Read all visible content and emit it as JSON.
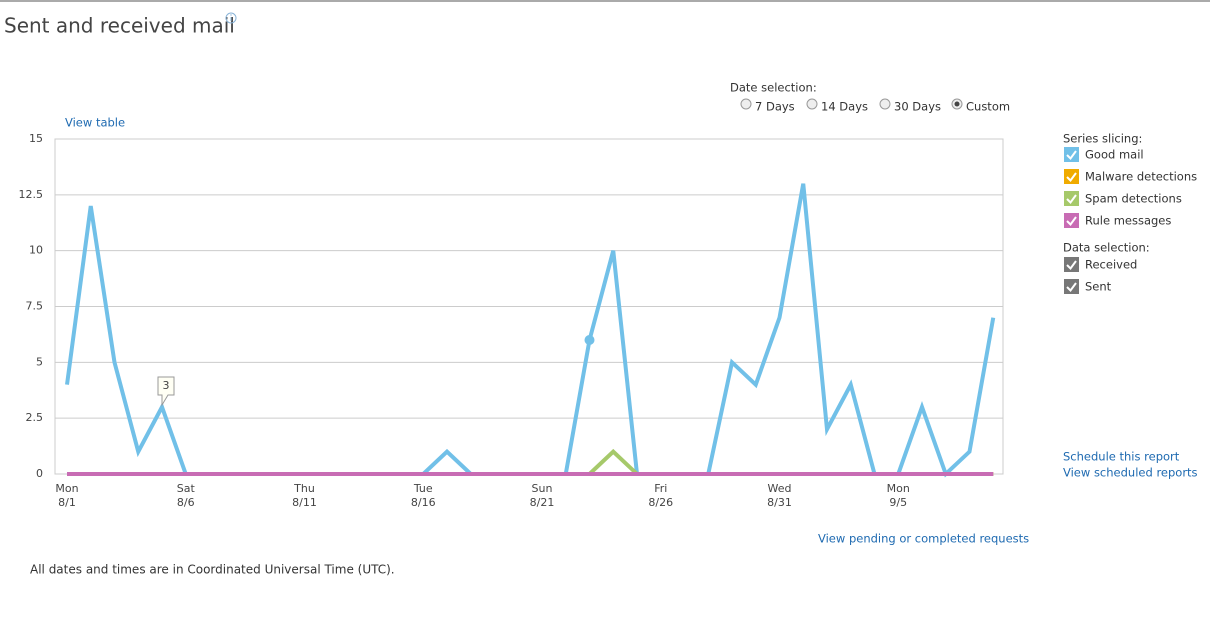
{
  "header": {
    "title": "Sent and received mail"
  },
  "view_table": "View table",
  "date_selection": {
    "label": "Date selection:",
    "options": [
      "7 Days",
      "14 Days",
      "30 Days",
      "Custom"
    ],
    "selected": 3
  },
  "series_slicing": {
    "label": "Series slicing:"
  },
  "data_selection": {
    "label": "Data selection:",
    "items": [
      "Received",
      "Sent"
    ]
  },
  "links": {
    "schedule": "Schedule this report",
    "scheduled": "View scheduled reports",
    "pending": "View pending or completed requests"
  },
  "footer": "All dates and times are in Coordinated Universal Time (UTC).",
  "chart_data": {
    "type": "line",
    "categories": [
      [
        "Mon",
        "8/1"
      ],
      null,
      null,
      null,
      null,
      [
        "Sat",
        "8/6"
      ],
      null,
      null,
      null,
      null,
      [
        "Thu",
        "8/11"
      ],
      null,
      null,
      null,
      null,
      [
        "Tue",
        "8/16"
      ],
      null,
      null,
      null,
      null,
      [
        "Sun",
        "8/21"
      ],
      null,
      null,
      null,
      null,
      [
        "Fri",
        "8/26"
      ],
      null,
      null,
      null,
      null,
      [
        "Wed",
        "8/31"
      ],
      null,
      null,
      null,
      null,
      [
        "Mon",
        "9/5"
      ],
      null,
      null,
      null,
      null
    ],
    "series": [
      {
        "name": "Good mail",
        "color": "#71c0e8",
        "values": [
          4,
          12,
          5,
          1,
          3,
          0,
          0,
          0,
          0,
          0,
          0,
          0,
          0,
          0,
          0,
          0,
          1,
          0,
          0,
          0,
          0,
          0,
          6,
          10,
          0,
          0,
          0,
          0,
          5,
          4,
          7,
          13,
          2,
          4,
          0,
          0,
          3,
          0,
          1,
          7
        ]
      },
      {
        "name": "Malware detections",
        "color": "#f0ab00",
        "values": [
          0,
          0,
          0,
          0,
          0,
          0,
          0,
          0,
          0,
          0,
          0,
          0,
          0,
          0,
          0,
          0,
          0,
          0,
          0,
          0,
          0,
          0,
          0,
          0,
          0,
          0,
          0,
          0,
          0,
          0,
          0,
          0,
          0,
          0,
          0,
          0,
          0,
          0,
          0,
          0
        ]
      },
      {
        "name": "Spam detections",
        "color": "#a6c96a",
        "values": [
          0,
          0,
          0,
          0,
          0,
          0,
          0,
          0,
          0,
          0,
          0,
          0,
          0,
          0,
          0,
          0,
          0,
          0,
          0,
          0,
          0,
          0,
          0,
          1,
          0,
          0,
          0,
          0,
          0,
          0,
          0,
          0,
          0,
          0,
          0,
          0,
          0,
          0,
          0,
          0
        ]
      },
      {
        "name": "Rule messages",
        "color": "#c86cb4",
        "values": [
          0,
          0,
          0,
          0,
          0,
          0,
          0,
          0,
          0,
          0,
          0,
          0,
          0,
          0,
          0,
          0,
          0,
          0,
          0,
          0,
          0,
          0,
          0,
          0,
          0,
          0,
          0,
          0,
          0,
          0,
          0,
          0,
          0,
          0,
          0,
          0,
          0,
          0,
          0,
          0
        ]
      }
    ],
    "ylim": [
      0,
      15
    ],
    "yticks": [
      0,
      2.5,
      5,
      7.5,
      10,
      12.5,
      15
    ],
    "grid": true
  }
}
